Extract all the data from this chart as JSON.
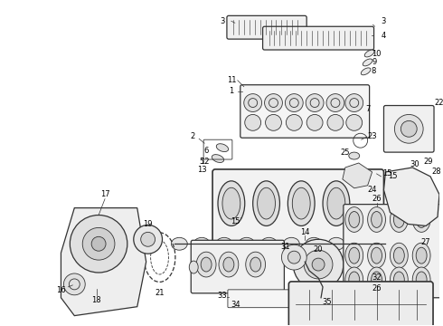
{
  "bg_color": "#ffffff",
  "line_color": "#333333",
  "label_color": "#000000",
  "label_fontsize": 6.0,
  "fig_width": 4.9,
  "fig_height": 3.6,
  "dpi": 100
}
